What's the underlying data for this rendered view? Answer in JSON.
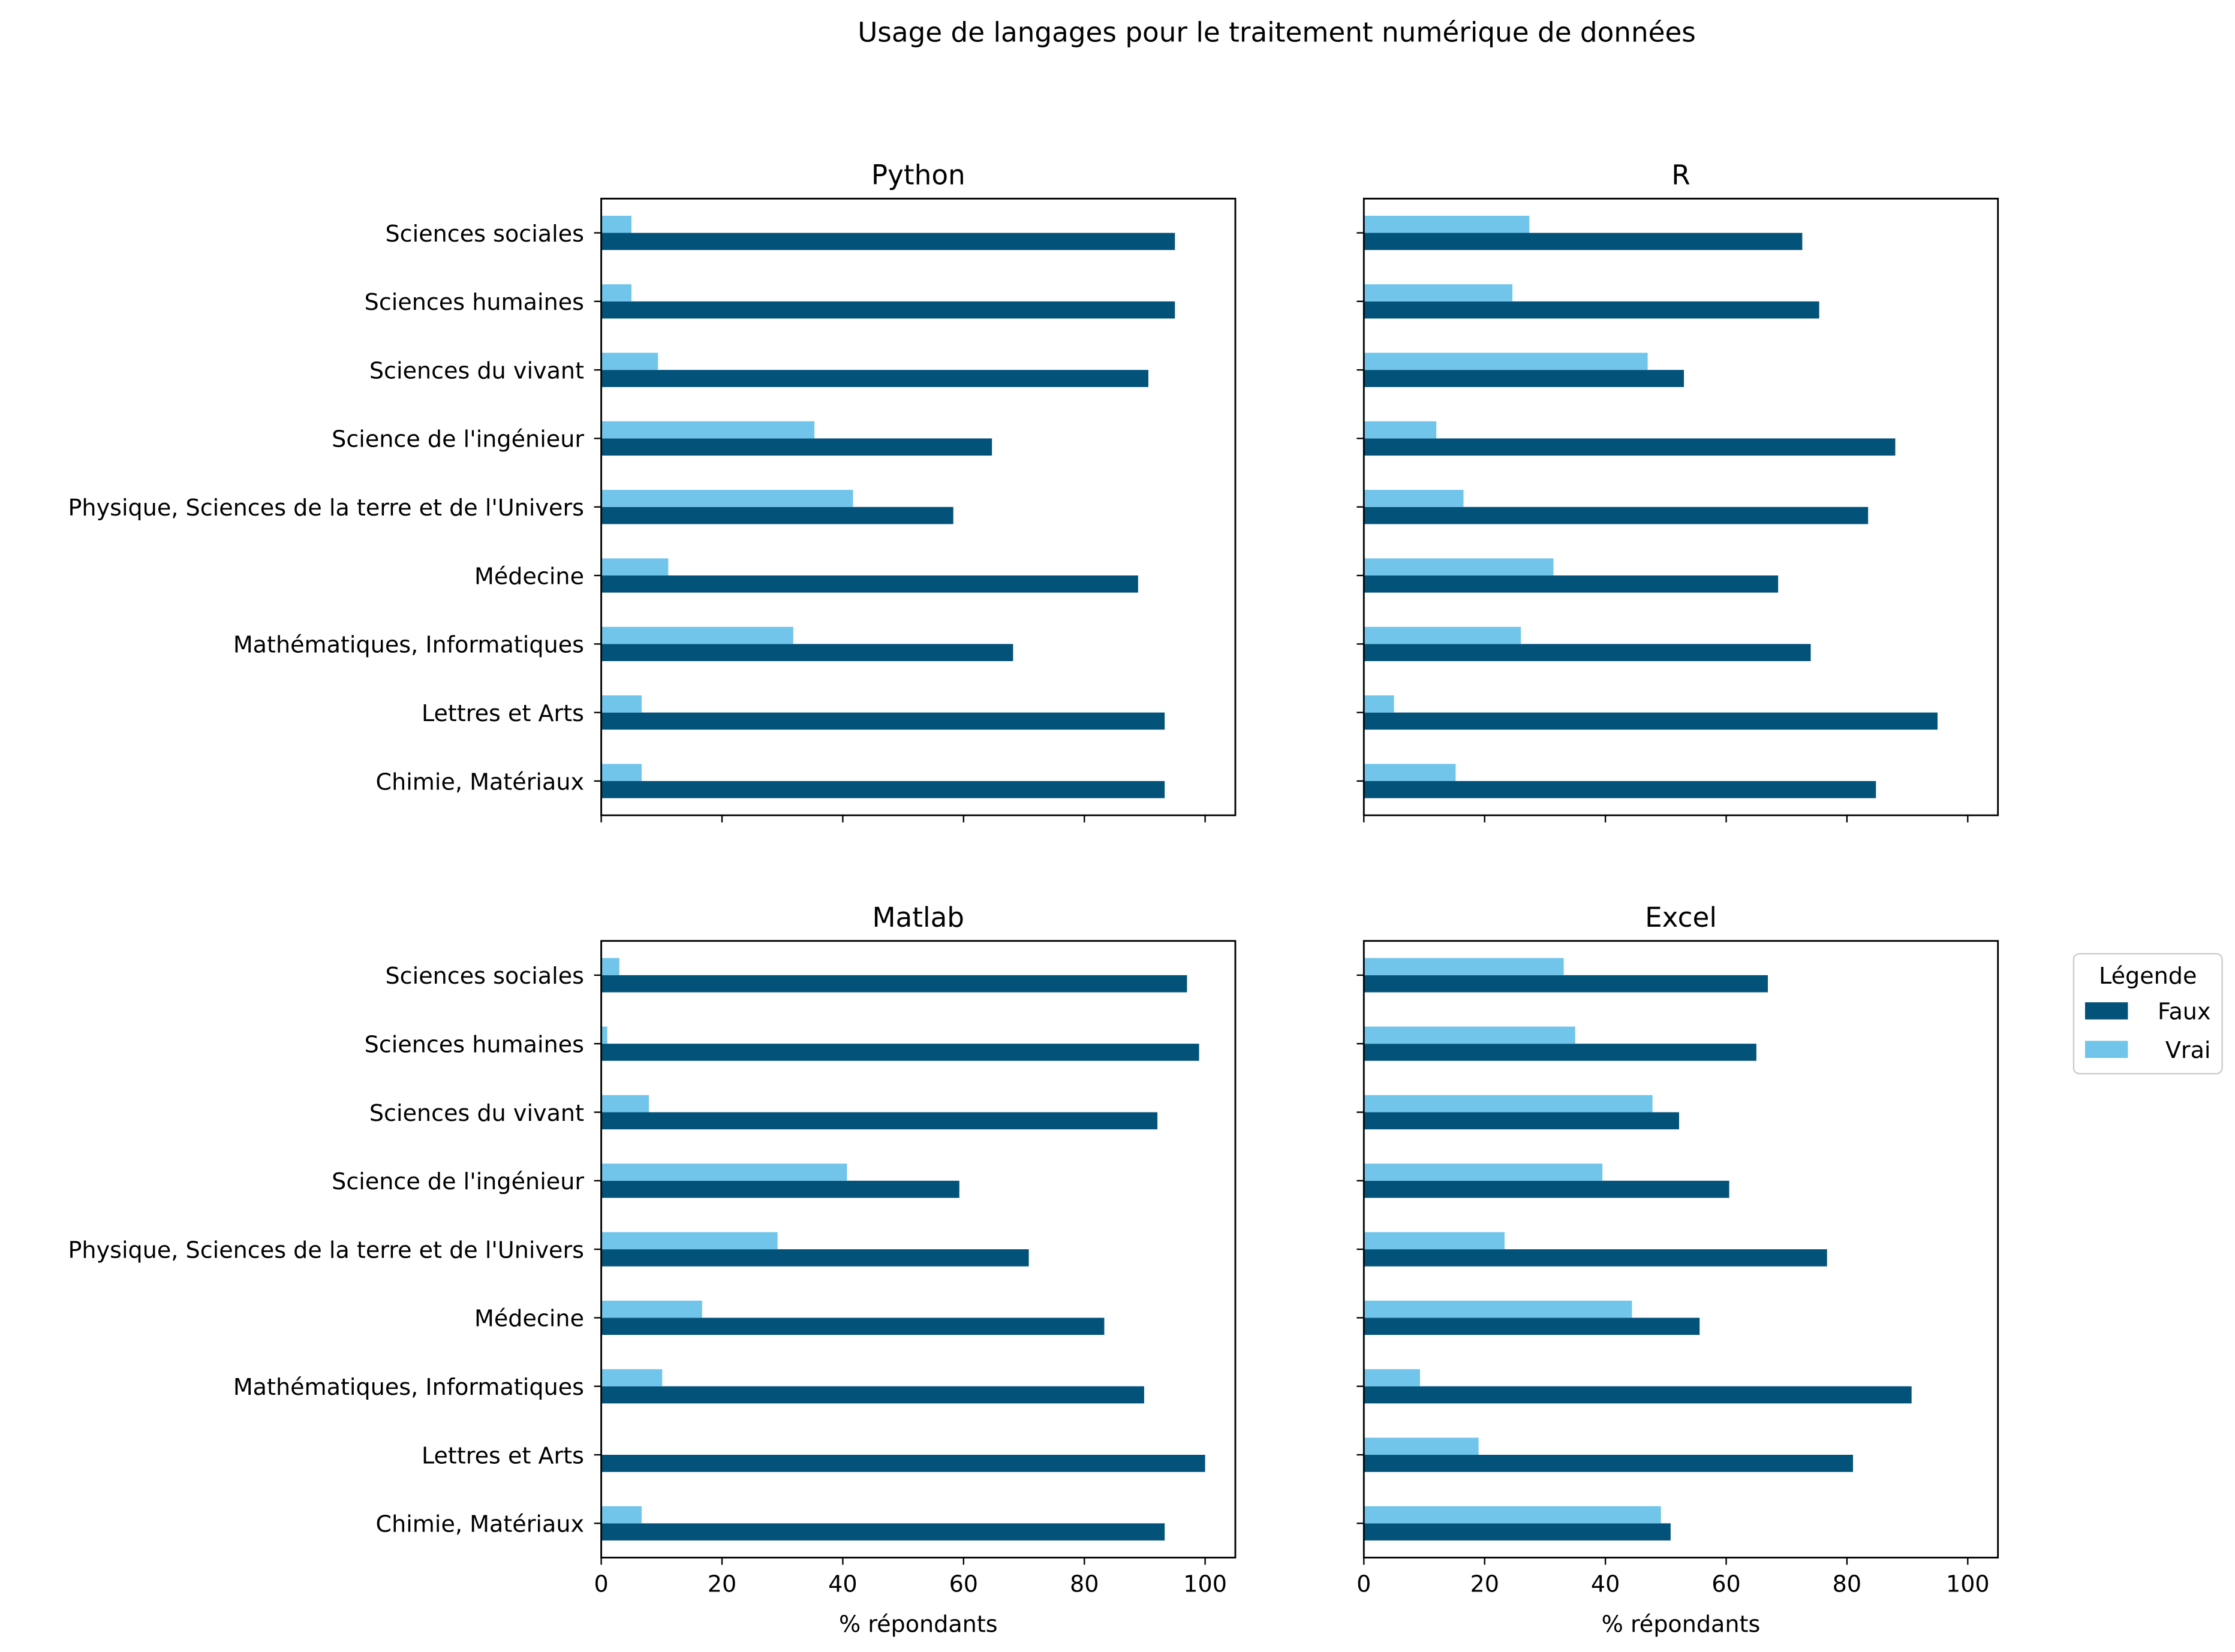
{
  "chart_data": {
    "type": "bar",
    "orientation": "horizontal",
    "suptitle": "Usage de langages pour le traitement numérique de données",
    "xlabel": "% répondants",
    "xlim": [
      0,
      105
    ],
    "xticks": [
      0,
      20,
      40,
      60,
      80,
      100
    ],
    "grid": false,
    "categories": [
      "Chimie, Matériaux",
      "Lettres et Arts",
      "Mathématiques, Informatiques",
      "Médecine",
      "Physique, Sciences de la terre et de l'Univers",
      "Science de l'ingénieur",
      "Sciences du vivant",
      "Sciences humaines",
      "Sciences sociales"
    ],
    "legend": {
      "title": "Légende",
      "placement": "right",
      "entries": [
        {
          "name": "Faux",
          "color": "#03527a"
        },
        {
          "name": "Vrai",
          "color": "#72c5ea"
        }
      ]
    },
    "panels": [
      {
        "title": "Python",
        "series": [
          {
            "name": "Faux",
            "values": [
              93.3,
              93.3,
              68.2,
              88.9,
              58.3,
              64.7,
              90.6,
              95.0,
              95.0
            ]
          },
          {
            "name": "Vrai",
            "values": [
              6.7,
              6.7,
              31.8,
              11.1,
              41.7,
              35.3,
              9.4,
              5.0,
              5.0
            ]
          }
        ]
      },
      {
        "title": "R",
        "series": [
          {
            "name": "Faux",
            "values": [
              84.8,
              95.0,
              74.0,
              68.6,
              83.5,
              88.0,
              53.0,
              75.4,
              72.6
            ]
          },
          {
            "name": "Vrai",
            "values": [
              15.2,
              5.0,
              26.0,
              31.4,
              16.5,
              12.0,
              47.0,
              24.6,
              27.4
            ]
          }
        ]
      },
      {
        "title": "Matlab",
        "series": [
          {
            "name": "Faux",
            "values": [
              93.3,
              100.0,
              89.9,
              83.3,
              70.8,
              59.3,
              92.1,
              99.0,
              97.0
            ]
          },
          {
            "name": "Vrai",
            "values": [
              6.7,
              0.0,
              10.1,
              16.7,
              29.2,
              40.7,
              7.9,
              1.0,
              3.0
            ]
          }
        ]
      },
      {
        "title": "Excel",
        "series": [
          {
            "name": "Faux",
            "values": [
              50.8,
              81.0,
              90.7,
              55.6,
              76.7,
              60.5,
              52.2,
              65.0,
              66.9
            ]
          },
          {
            "name": "Vrai",
            "values": [
              49.2,
              19.0,
              9.3,
              44.4,
              23.3,
              39.5,
              47.8,
              35.0,
              33.1
            ]
          }
        ]
      }
    ]
  }
}
